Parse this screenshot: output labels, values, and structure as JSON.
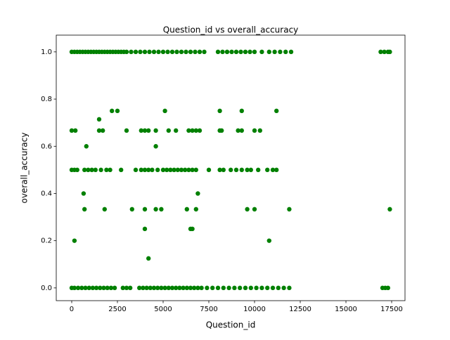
{
  "chart_data": {
    "type": "scatter",
    "title": "Question_id vs overall_accuracy",
    "xlabel": "Question_id",
    "ylabel": "overall_accuracy",
    "color": "#008000",
    "x": [
      0,
      150,
      300,
      450,
      600,
      750,
      900,
      1050,
      1200,
      1350,
      1500,
      1650,
      1800,
      1950,
      2100,
      2250,
      2400,
      2550,
      2700,
      2850,
      3000,
      3250,
      3500,
      3750,
      4000,
      4250,
      4500,
      4750,
      5000,
      5250,
      5500,
      5750,
      6000,
      6250,
      6500,
      6750,
      7000,
      7250,
      8000,
      8250,
      8500,
      8750,
      9000,
      9250,
      9500,
      9750,
      10000,
      10400,
      10800,
      11100,
      11400,
      11700,
      12000,
      16900,
      17100,
      17300,
      17400,
      0,
      150,
      350,
      550,
      750,
      950,
      1150,
      1350,
      1550,
      1750,
      1950,
      2150,
      2350,
      2800,
      3000,
      3200,
      3700,
      3900,
      4100,
      4300,
      4500,
      4700,
      4900,
      5100,
      5300,
      5500,
      5700,
      5900,
      6100,
      6300,
      6500,
      6700,
      6900,
      7100,
      7400,
      7700,
      8000,
      8300,
      8600,
      8900,
      9200,
      9500,
      9800,
      10100,
      10400,
      10700,
      11000,
      11300,
      11600,
      11900,
      17000,
      17150,
      17300,
      0,
      150,
      300,
      700,
      900,
      1100,
      1300,
      1600,
      1900,
      2100,
      2700,
      3500,
      3800,
      4000,
      4200,
      4400,
      4700,
      5000,
      5200,
      5400,
      5600,
      5800,
      6000,
      6200,
      6400,
      6600,
      6800,
      7500,
      8100,
      8300,
      8700,
      9000,
      9300,
      9600,
      9800,
      10200,
      10700,
      11000,
      11200,
      0,
      200,
      1500,
      1700,
      3000,
      3800,
      4000,
      4200,
      4600,
      5300,
      5700,
      6400,
      6600,
      6800,
      7000,
      8100,
      8200,
      9100,
      9300,
      10000,
      10300,
      2200,
      2500,
      5100,
      8100,
      9300,
      11200,
      1500,
      800,
      4600,
      650,
      6900,
      700,
      1800,
      3300,
      4000,
      4600,
      4900,
      6300,
      6800,
      9600,
      10000,
      11900,
      17400,
      4000,
      6500,
      6600,
      150,
      10800,
      4200
    ],
    "values": [
      1,
      1,
      1,
      1,
      1,
      1,
      1,
      1,
      1,
      1,
      1,
      1,
      1,
      1,
      1,
      1,
      1,
      1,
      1,
      1,
      1,
      1,
      1,
      1,
      1,
      1,
      1,
      1,
      1,
      1,
      1,
      1,
      1,
      1,
      1,
      1,
      1,
      1,
      1,
      1,
      1,
      1,
      1,
      1,
      1,
      1,
      1,
      1,
      1,
      1,
      1,
      1,
      1,
      1,
      1,
      1,
      1,
      0,
      0,
      0,
      0,
      0,
      0,
      0,
      0,
      0,
      0,
      0,
      0,
      0,
      0,
      0,
      0,
      0,
      0,
      0,
      0,
      0,
      0,
      0,
      0,
      0,
      0,
      0,
      0,
      0,
      0,
      0,
      0,
      0,
      0,
      0,
      0,
      0,
      0,
      0,
      0,
      0,
      0,
      0,
      0,
      0,
      0,
      0,
      0,
      0,
      0,
      0,
      0,
      0,
      0.5,
      0.5,
      0.5,
      0.5,
      0.5,
      0.5,
      0.5,
      0.5,
      0.5,
      0.5,
      0.5,
      0.5,
      0.5,
      0.5,
      0.5,
      0.5,
      0.5,
      0.5,
      0.5,
      0.5,
      0.5,
      0.5,
      0.5,
      0.5,
      0.5,
      0.5,
      0.5,
      0.5,
      0.5,
      0.5,
      0.5,
      0.5,
      0.5,
      0.5,
      0.5,
      0.5,
      0.5,
      0.5,
      0.5,
      0.6667,
      0.6667,
      0.6667,
      0.6667,
      0.6667,
      0.6667,
      0.6667,
      0.6667,
      0.6667,
      0.6667,
      0.6667,
      0.6667,
      0.6667,
      0.6667,
      0.6667,
      0.6667,
      0.6667,
      0.6667,
      0.6667,
      0.6667,
      0.6667,
      0.75,
      0.75,
      0.75,
      0.75,
      0.75,
      0.75,
      0.7143,
      0.6,
      0.6,
      0.4,
      0.4,
      0.3333,
      0.3333,
      0.3333,
      0.3333,
      0.3333,
      0.3333,
      0.3333,
      0.3333,
      0.3333,
      0.3333,
      0.3333,
      0.3333,
      0.25,
      0.25,
      0.25,
      0.2,
      0.2,
      0.125
    ],
    "xlim": [
      -846,
      18230
    ],
    "ylim": [
      -0.054,
      1.071
    ],
    "xticks": [
      0,
      2500,
      5000,
      7500,
      10000,
      12500,
      15000,
      17500
    ],
    "yticks": [
      {
        "value": 0,
        "label": "0.0"
      },
      {
        "value": 0.2,
        "label": "0.2"
      },
      {
        "value": 0.4,
        "label": "0.4"
      },
      {
        "value": 0.6,
        "label": "0.6"
      },
      {
        "value": 0.8,
        "label": "0.8"
      },
      {
        "value": 1,
        "label": "1.0"
      }
    ]
  }
}
